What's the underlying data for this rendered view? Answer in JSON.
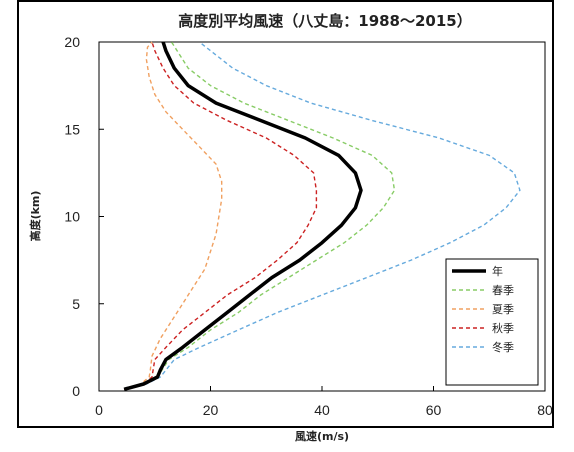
{
  "chart_data": {
    "type": "line",
    "title": "高度別平均風速（八丈島：1988〜2015）",
    "xlabel": "風速(m/s)",
    "ylabel": "高度(km)",
    "xlim": [
      0,
      80
    ],
    "ylim": [
      0,
      20
    ],
    "xticks": [
      "0",
      "20",
      "40",
      "60",
      "80"
    ],
    "yticks": [
      "0",
      "5",
      "10",
      "15",
      "20"
    ],
    "grid": false,
    "legend_position": "bottom-right",
    "series": [
      {
        "name": "年",
        "color": "#000000",
        "style": "solid-thick",
        "points": [
          [
            4.5,
            0.1
          ],
          [
            8,
            0.4
          ],
          [
            10.5,
            0.8
          ],
          [
            11,
            1.2
          ],
          [
            12,
            1.8
          ],
          [
            15,
            2.5
          ],
          [
            19,
            3.5
          ],
          [
            23,
            4.5
          ],
          [
            27,
            5.5
          ],
          [
            31,
            6.5
          ],
          [
            36,
            7.5
          ],
          [
            40,
            8.5
          ],
          [
            43.5,
            9.5
          ],
          [
            46,
            10.5
          ],
          [
            47,
            11.5
          ],
          [
            46,
            12.5
          ],
          [
            43,
            13.5
          ],
          [
            37,
            14.5
          ],
          [
            29,
            15.5
          ],
          [
            21,
            16.5
          ],
          [
            16,
            17.5
          ],
          [
            13.5,
            18.5
          ],
          [
            12,
            19.5
          ],
          [
            11.5,
            20
          ]
        ]
      },
      {
        "name": "春季",
        "color": "#88cc66",
        "style": "dashed",
        "points": [
          [
            4.5,
            0.1
          ],
          [
            8,
            0.4
          ],
          [
            10.5,
            0.8
          ],
          [
            11.3,
            1.2
          ],
          [
            12.5,
            1.8
          ],
          [
            16,
            2.5
          ],
          [
            20,
            3.5
          ],
          [
            25,
            4.5
          ],
          [
            29,
            5.5
          ],
          [
            34,
            6.5
          ],
          [
            39,
            7.5
          ],
          [
            44,
            8.5
          ],
          [
            48,
            9.5
          ],
          [
            51,
            10.5
          ],
          [
            53,
            11.5
          ],
          [
            52.5,
            12.5
          ],
          [
            49,
            13.5
          ],
          [
            42,
            14.5
          ],
          [
            34,
            15.5
          ],
          [
            26,
            16.5
          ],
          [
            20,
            17.5
          ],
          [
            16,
            18.5
          ],
          [
            14,
            19.5
          ],
          [
            13,
            20
          ]
        ]
      },
      {
        "name": "夏季",
        "color": "#f0a060",
        "style": "dashed",
        "points": [
          [
            4.5,
            0.1
          ],
          [
            7.5,
            0.4
          ],
          [
            9,
            0.8
          ],
          [
            9.2,
            1.2
          ],
          [
            9.5,
            2
          ],
          [
            11,
            3
          ],
          [
            13,
            4
          ],
          [
            15,
            5
          ],
          [
            17,
            6
          ],
          [
            19,
            7
          ],
          [
            20,
            8
          ],
          [
            21,
            9
          ],
          [
            21.5,
            10
          ],
          [
            22,
            11
          ],
          [
            22,
            12
          ],
          [
            21,
            13
          ],
          [
            18,
            14
          ],
          [
            15,
            15
          ],
          [
            12,
            16
          ],
          [
            10,
            17
          ],
          [
            9,
            18
          ],
          [
            8.5,
            19
          ],
          [
            8.7,
            19.7
          ],
          [
            9.5,
            20
          ]
        ]
      },
      {
        "name": "秋季",
        "color": "#cc2222",
        "style": "dashed",
        "points": [
          [
            4.5,
            0.1
          ],
          [
            8,
            0.4
          ],
          [
            9.5,
            0.8
          ],
          [
            9.7,
            1.2
          ],
          [
            10,
            1.8
          ],
          [
            12,
            2.5
          ],
          [
            15,
            3.5
          ],
          [
            19,
            4.5
          ],
          [
            23,
            5.5
          ],
          [
            28,
            6.5
          ],
          [
            32,
            7.5
          ],
          [
            35.5,
            8.5
          ],
          [
            37.5,
            9.5
          ],
          [
            39,
            10.5
          ],
          [
            39,
            11.5
          ],
          [
            38.5,
            12.5
          ],
          [
            35,
            13.5
          ],
          [
            30,
            14.5
          ],
          [
            23,
            15.5
          ],
          [
            17,
            16.5
          ],
          [
            13.5,
            17.5
          ],
          [
            11.5,
            18.5
          ],
          [
            10,
            19.5
          ],
          [
            9.5,
            20
          ]
        ]
      },
      {
        "name": "冬季",
        "color": "#66aadd",
        "style": "dashed",
        "points": [
          [
            4.5,
            0.1
          ],
          [
            8.5,
            0.4
          ],
          [
            11,
            0.8
          ],
          [
            12,
            1.2
          ],
          [
            13.5,
            1.8
          ],
          [
            18,
            2.5
          ],
          [
            25,
            3.5
          ],
          [
            32,
            4.5
          ],
          [
            40,
            5.5
          ],
          [
            48,
            6.5
          ],
          [
            56,
            7.5
          ],
          [
            63,
            8.5
          ],
          [
            69,
            9.5
          ],
          [
            73,
            10.5
          ],
          [
            75.5,
            11.5
          ],
          [
            74.5,
            12.5
          ],
          [
            70,
            13.5
          ],
          [
            61,
            14.5
          ],
          [
            49,
            15.5
          ],
          [
            38,
            16.5
          ],
          [
            30,
            17.5
          ],
          [
            24,
            18.5
          ],
          [
            20,
            19.5
          ],
          [
            18,
            20
          ]
        ]
      }
    ]
  }
}
